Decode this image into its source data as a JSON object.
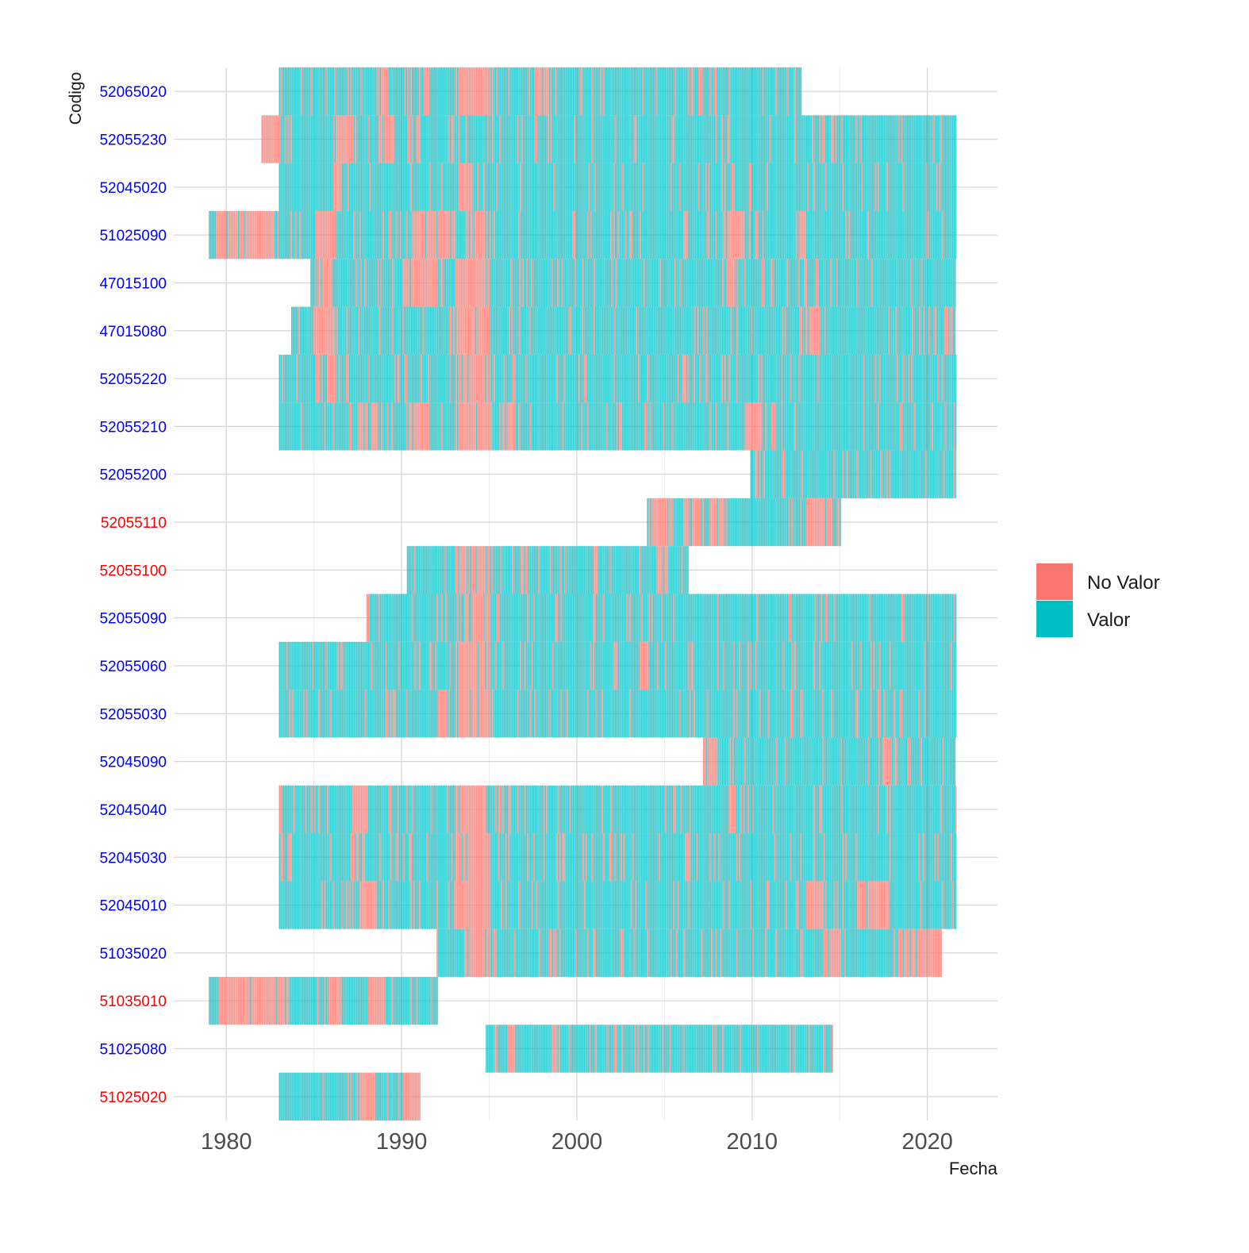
{
  "chart_data": {
    "type": "heatmap",
    "xlabel": "Fecha",
    "ylabel": "Codigo",
    "xlim": [
      1977,
      2024
    ],
    "x_ticks": [
      1980,
      1990,
      2000,
      2010,
      2020
    ],
    "grid": true,
    "legend": {
      "position": "right",
      "items": [
        {
          "label": "No Valor",
          "color": "#F8766D"
        },
        {
          "label": "Valor",
          "color": "#00BFC4"
        }
      ]
    },
    "label_colors": {
      "blue": "#0000FF",
      "red": "#FF0000"
    },
    "stations": [
      {
        "code": "52065020",
        "label_color": "blue",
        "start": 1983.0,
        "end": 2012.8,
        "missing": [
          [
            1988.5,
            1989.1
          ],
          [
            1991.2,
            1991.5
          ],
          [
            1993.0,
            1995.0
          ],
          [
            1997.5,
            1998.5
          ],
          [
            2006.3,
            2006.6
          ]
        ]
      },
      {
        "code": "52055230",
        "label_color": "blue",
        "start": 1982.0,
        "end": 2021.6,
        "missing": [
          [
            1982.0,
            1983.0
          ],
          [
            1986.0,
            1987.0
          ],
          [
            1988.5,
            1989.5
          ]
        ]
      },
      {
        "code": "52045020",
        "label_color": "blue",
        "start": 1983.0,
        "end": 2021.6,
        "missing": [
          [
            1986.0,
            1986.5
          ],
          [
            1993.2,
            1994.0
          ]
        ]
      },
      {
        "code": "51025090",
        "label_color": "blue",
        "start": 1979.0,
        "end": 2021.6,
        "missing": [
          [
            1979.3,
            1983.0
          ],
          [
            1985.0,
            1986.2
          ],
          [
            1990.5,
            1993.0
          ],
          [
            1993.5,
            1995.0
          ],
          [
            2008.5,
            2009.5
          ],
          [
            2012.5,
            2013.0
          ]
        ]
      },
      {
        "code": "47015100",
        "label_color": "blue",
        "start": 1984.8,
        "end": 2021.6,
        "missing": [
          [
            1985.0,
            1986.0
          ],
          [
            1990.0,
            1992.0
          ],
          [
            1993.0,
            1995.0
          ],
          [
            2008.5,
            2009.0
          ]
        ]
      },
      {
        "code": "47015080",
        "label_color": "blue",
        "start": 1983.7,
        "end": 2021.6,
        "missing": [
          [
            1985.0,
            1986.2
          ],
          [
            1993.0,
            1995.0
          ],
          [
            2013.0,
            2013.8
          ],
          [
            2021.0,
            2021.6
          ]
        ]
      },
      {
        "code": "52055220",
        "label_color": "blue",
        "start": 1983.0,
        "end": 2021.6,
        "missing": [
          [
            1985.0,
            1986.2
          ],
          [
            1993.0,
            1995.0
          ]
        ]
      },
      {
        "code": "52055210",
        "label_color": "blue",
        "start": 1983.0,
        "end": 2021.6,
        "missing": [
          [
            1987.5,
            1988.5
          ],
          [
            1990.2,
            1991.5
          ],
          [
            1993.0,
            1995.0
          ],
          [
            1995.5,
            1996.3
          ],
          [
            2009.5,
            2010.5
          ]
        ]
      },
      {
        "code": "52055200",
        "label_color": "blue",
        "start": 2009.9,
        "end": 2021.6,
        "missing": [
          [
            2021.4,
            2021.6
          ]
        ]
      },
      {
        "code": "52055110",
        "label_color": "red",
        "start": 2004.0,
        "end": 2015.0,
        "missing": [
          [
            2004.3,
            2005.5
          ],
          [
            2006.0,
            2007.0
          ],
          [
            2007.5,
            2008.5
          ],
          [
            2013.0,
            2014.5
          ]
        ]
      },
      {
        "code": "52055100",
        "label_color": "red",
        "start": 1990.3,
        "end": 2006.3,
        "missing": [
          [
            1993.0,
            1995.0
          ],
          [
            2004.5,
            2005.2
          ]
        ]
      },
      {
        "code": "52055090",
        "label_color": "blue",
        "start": 1988.0,
        "end": 2021.6,
        "missing": [
          [
            1993.5,
            1995.0
          ],
          [
            2012.0,
            2012.3
          ]
        ]
      },
      {
        "code": "52055060",
        "label_color": "blue",
        "start": 1983.0,
        "end": 2021.6,
        "missing": [
          [
            1993.0,
            1995.0
          ],
          [
            2003.5,
            2004.0
          ]
        ]
      },
      {
        "code": "52055030",
        "label_color": "blue",
        "start": 1983.0,
        "end": 2021.6,
        "missing": [
          [
            1993.0,
            1995.0
          ],
          [
            1992.0,
            1992.5
          ]
        ]
      },
      {
        "code": "52045090",
        "label_color": "blue",
        "start": 2007.2,
        "end": 2021.6,
        "missing": [
          [
            2007.2,
            2008.0
          ]
        ]
      },
      {
        "code": "52045040",
        "label_color": "blue",
        "start": 1983.0,
        "end": 2021.6,
        "missing": [
          [
            1987.0,
            1988.0
          ],
          [
            1993.0,
            1994.8
          ],
          [
            2008.5,
            2009.0
          ]
        ]
      },
      {
        "code": "52045030",
        "label_color": "blue",
        "start": 1983.0,
        "end": 2021.6,
        "missing": [
          [
            1987.0,
            1987.5
          ],
          [
            1993.0,
            1995.0
          ],
          [
            2006.0,
            2006.5
          ]
        ]
      },
      {
        "code": "52045010",
        "label_color": "blue",
        "start": 1983.0,
        "end": 2021.6,
        "missing": [
          [
            1987.5,
            1988.5
          ],
          [
            1993.0,
            1995.0
          ],
          [
            2013.0,
            2014.0
          ],
          [
            2016.0,
            2017.8
          ]
        ]
      },
      {
        "code": "51035020",
        "label_color": "blue",
        "start": 1992.0,
        "end": 2020.8,
        "missing": [
          [
            1993.5,
            1995.0
          ],
          [
            2014.0,
            2015.0
          ],
          [
            2018.0,
            2020.8
          ]
        ]
      },
      {
        "code": "51035010",
        "label_color": "red",
        "start": 1979.0,
        "end": 1992.0,
        "missing": [
          [
            1979.5,
            1983.5
          ],
          [
            1985.5,
            1986.5
          ],
          [
            1988.0,
            1989.0
          ]
        ]
      },
      {
        "code": "51025080",
        "label_color": "blue",
        "start": 1994.8,
        "end": 2014.6,
        "missing": [
          [
            1996.0,
            1996.5
          ],
          [
            1998.5,
            1999.0
          ]
        ]
      },
      {
        "code": "51025020",
        "label_color": "red",
        "start": 1983.0,
        "end": 1991.0,
        "missing": [
          [
            1987.5,
            1988.5
          ],
          [
            1990.0,
            1991.0
          ]
        ]
      }
    ]
  }
}
